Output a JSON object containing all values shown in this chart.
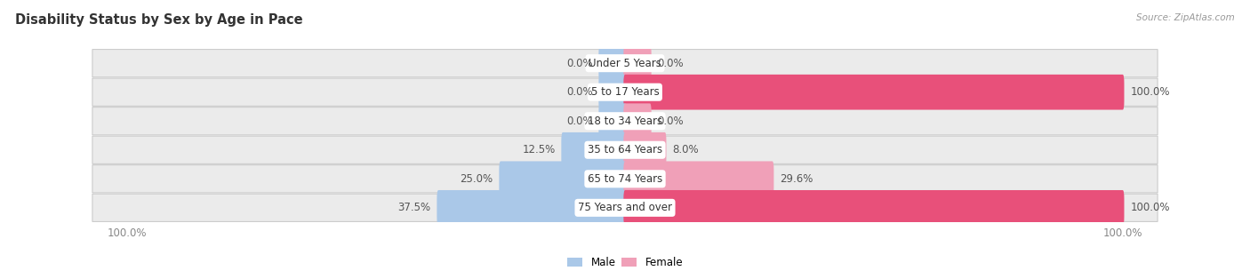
{
  "title": "Disability Status by Sex by Age in Pace",
  "source": "Source: ZipAtlas.com",
  "categories": [
    "Under 5 Years",
    "5 to 17 Years",
    "18 to 34 Years",
    "35 to 64 Years",
    "65 to 74 Years",
    "75 Years and over"
  ],
  "male_values": [
    0.0,
    0.0,
    0.0,
    12.5,
    25.0,
    37.5
  ],
  "female_values": [
    0.0,
    100.0,
    0.0,
    8.0,
    29.6,
    100.0
  ],
  "male_color_full": "#7aaed4",
  "male_color_partial": "#aac8e8",
  "female_color_full": "#e8507a",
  "female_color_partial": "#f0a0b8",
  "row_bg_color": "#ebebeb",
  "row_bg_edge": "#d8d8d8",
  "max_value": 100.0,
  "bar_height": 0.62,
  "title_fontsize": 10.5,
  "label_fontsize": 8.5,
  "tick_fontsize": 8.5,
  "category_fontsize": 8.5,
  "stub_size": 5.0
}
